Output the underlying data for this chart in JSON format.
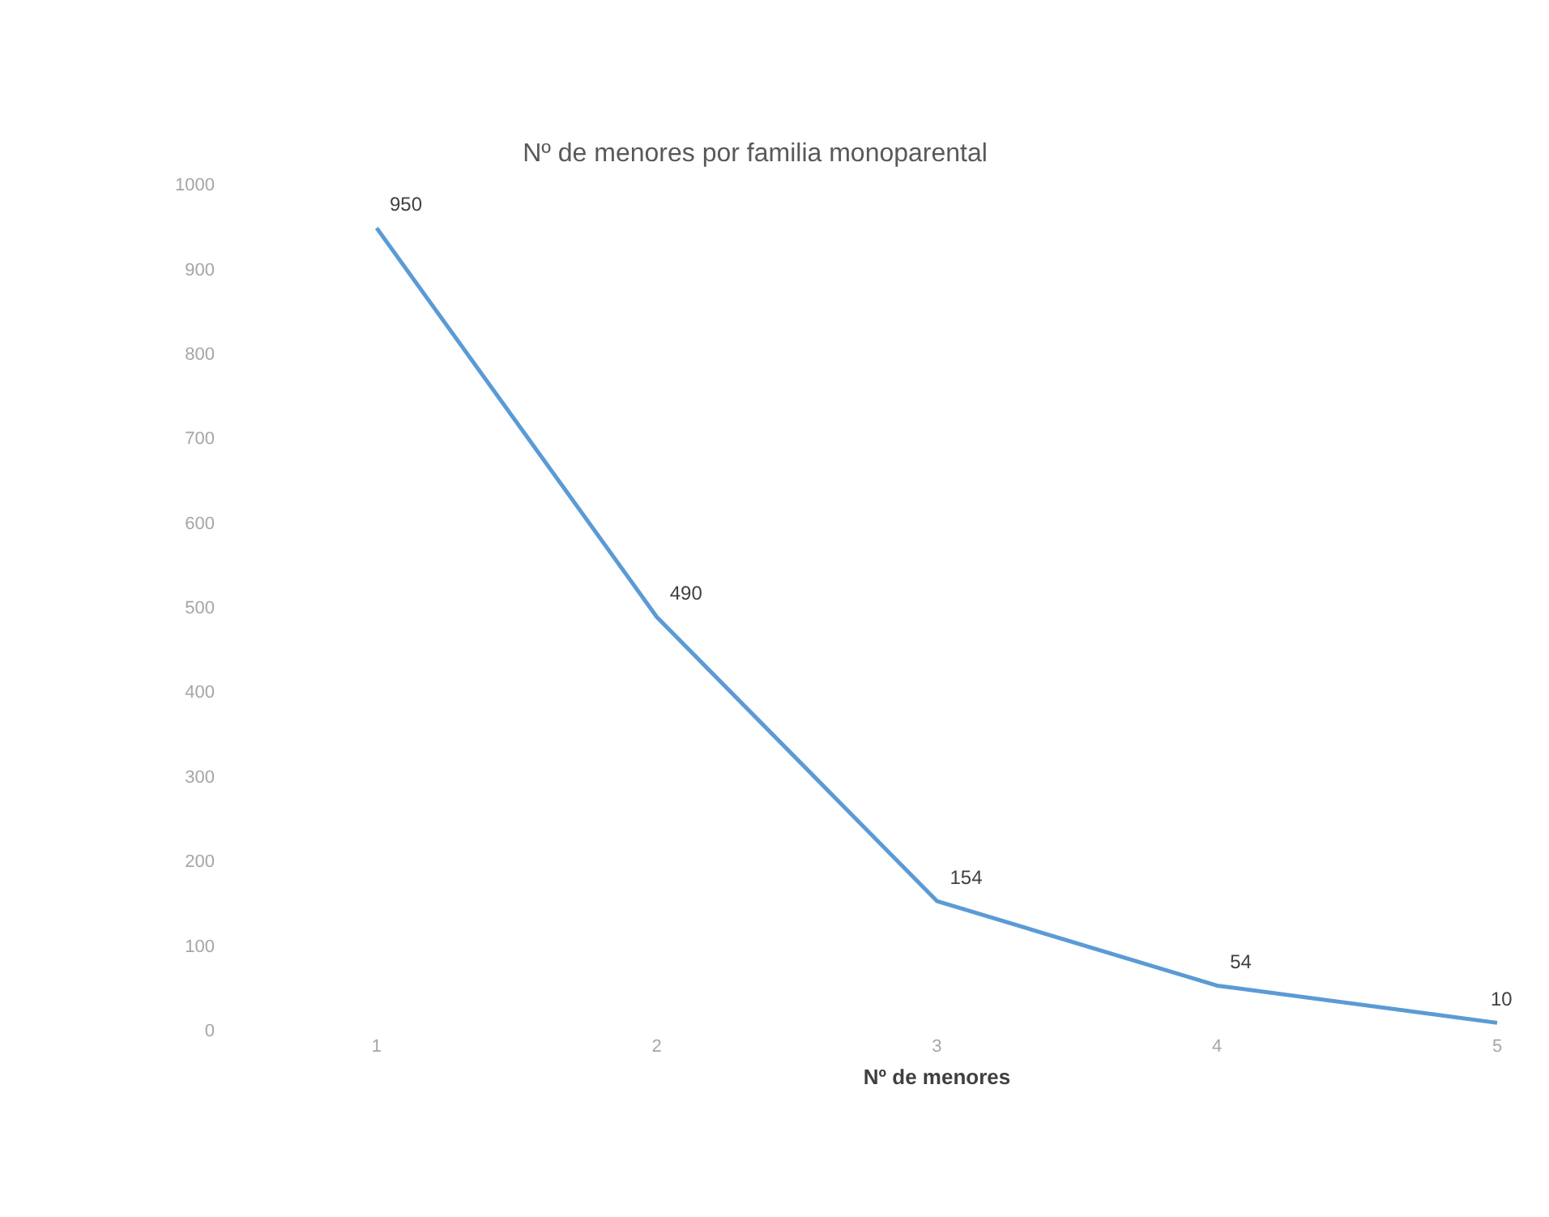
{
  "chart_data": {
    "type": "line",
    "title": "Nº de menores por familia monoparental",
    "xlabel": "Nº de menores",
    "categories": [
      "1",
      "2",
      "3",
      "4",
      "5"
    ],
    "series": [
      {
        "color": "#5b9bd5",
        "values": [
          950,
          490,
          154,
          54,
          10
        ]
      }
    ],
    "ylim": [
      0,
      1000
    ],
    "yticks": [
      0,
      100,
      200,
      300,
      400,
      500,
      600,
      700,
      800,
      900,
      1000
    ],
    "data_labels": true,
    "grid": false,
    "legend": false,
    "marker": "none",
    "line_style": "solid"
  }
}
